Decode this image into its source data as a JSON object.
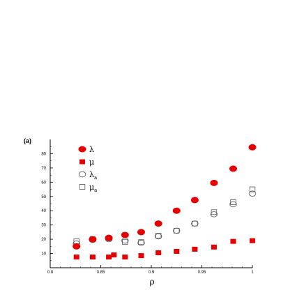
{
  "chart_data": {
    "type": "scatter",
    "panel_label": "(a)",
    "xlabel": "ρ",
    "ylabel": "",
    "xlim": [
      0.8,
      1.0
    ],
    "ylim": [
      0,
      90
    ],
    "x_ticks": [
      0.8,
      0.85,
      0.9,
      0.95,
      1.0
    ],
    "x_tick_labels": [
      "0.8",
      "0.85",
      "0.9",
      "0.95",
      "1"
    ],
    "y_ticks": [
      10,
      20,
      30,
      40,
      50,
      60,
      70,
      80
    ],
    "y_tick_labels": [
      "10",
      "20",
      "30",
      "40",
      "50",
      "60",
      "70",
      "80"
    ],
    "grid": false,
    "legend_position": "top-left",
    "series": [
      {
        "name": "λ",
        "marker": "filled-circle",
        "color": "#e60000",
        "x": [
          0.826,
          0.842,
          0.858,
          0.874,
          0.89,
          0.907,
          0.925,
          0.943,
          0.962,
          0.981,
          1.0
        ],
        "y": [
          15.0,
          20.0,
          21.0,
          23.0,
          25.0,
          31.0,
          40.0,
          47.5,
          59.5,
          69.5,
          84.5
        ]
      },
      {
        "name": "μ",
        "marker": "filled-square",
        "color": "#e60000",
        "x": [
          0.826,
          0.842,
          0.858,
          0.863,
          0.874,
          0.89,
          0.907,
          0.925,
          0.943,
          0.962,
          0.981,
          1.0
        ],
        "y": [
          7.5,
          7.5,
          7.5,
          9.0,
          7.5,
          8.5,
          10.5,
          11.5,
          13.0,
          14.5,
          18.5,
          19.0
        ]
      },
      {
        "name": "λ",
        "subscript": "a",
        "marker": "open-circle",
        "color": "#555555",
        "x": [
          0.826,
          0.842,
          0.858,
          0.874,
          0.89,
          0.907,
          0.925,
          0.943,
          0.962,
          0.981,
          1.0
        ],
        "y": [
          17.0,
          19.5,
          20.0,
          19.0,
          17.5,
          22.0,
          26.0,
          31.0,
          37.5,
          44.5,
          52.0
        ]
      },
      {
        "name": "μ",
        "subscript": "a",
        "marker": "open-square",
        "color": "#555555",
        "x": [
          0.826,
          0.842,
          0.858,
          0.874,
          0.89,
          0.907,
          0.925,
          0.943,
          0.962,
          0.981,
          1.0
        ],
        "y": [
          18.5,
          20.0,
          20.5,
          18.0,
          18.0,
          22.5,
          26.0,
          31.0,
          39.0,
          46.0,
          55.0
        ]
      }
    ]
  }
}
